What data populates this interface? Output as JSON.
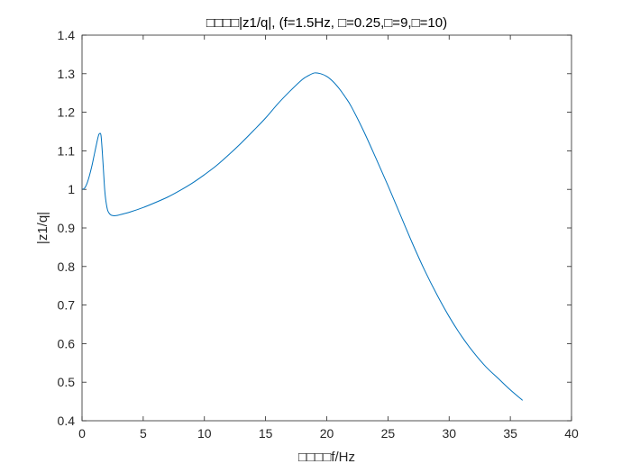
{
  "chart_data": {
    "type": "line",
    "title": "□□□□|z1/q|, (f=1.5Hz, □=0.25,□=9,□=10)",
    "xlabel": "□□□□f/Hz",
    "ylabel": "|z1/q|",
    "xlim": [
      0,
      40
    ],
    "ylim": [
      0.4,
      1.4
    ],
    "xticks": [
      0,
      5,
      10,
      15,
      20,
      25,
      30,
      35,
      40
    ],
    "yticks": [
      0.4,
      0.5,
      0.6,
      0.7,
      0.8,
      0.9,
      1,
      1.1,
      1.2,
      1.3,
      1.4
    ],
    "xtick_labels": [
      "0",
      "5",
      "10",
      "15",
      "20",
      "25",
      "30",
      "35",
      "40"
    ],
    "ytick_labels": [
      "0.4",
      "0.5",
      "0.6",
      "0.7",
      "0.8",
      "0.9",
      "1",
      "1.1",
      "1.2",
      "1.3",
      "1.4"
    ],
    "grid": false,
    "line_color": "#0072BD",
    "series": [
      {
        "x": [
          0,
          0.2,
          0.4,
          0.6,
          0.8,
          1.0,
          1.2,
          1.35,
          1.45,
          1.55,
          1.65,
          1.75,
          1.85,
          1.95,
          2.1,
          2.3,
          2.5,
          2.8,
          3.2,
          4,
          5,
          6,
          7,
          8,
          9,
          10,
          11,
          12,
          13,
          14,
          15,
          16,
          17,
          18,
          18.5,
          19,
          19.5,
          20,
          20.5,
          21,
          21.5,
          22,
          23,
          24,
          25,
          26,
          27,
          28,
          29,
          30,
          31,
          32,
          33,
          34,
          35,
          36
        ],
        "y": [
          1.0,
          1.003,
          1.015,
          1.035,
          1.06,
          1.09,
          1.12,
          1.14,
          1.145,
          1.14,
          1.1,
          1.05,
          1.0,
          0.97,
          0.945,
          0.935,
          0.932,
          0.932,
          0.935,
          0.942,
          0.953,
          0.966,
          0.98,
          0.997,
          1.016,
          1.038,
          1.062,
          1.09,
          1.12,
          1.152,
          1.185,
          1.222,
          1.255,
          1.285,
          1.295,
          1.302,
          1.3,
          1.293,
          1.28,
          1.262,
          1.24,
          1.215,
          1.152,
          1.082,
          1.01,
          0.935,
          0.86,
          0.79,
          0.727,
          0.67,
          0.62,
          0.577,
          0.54,
          0.51,
          0.48,
          0.453
        ]
      }
    ]
  }
}
